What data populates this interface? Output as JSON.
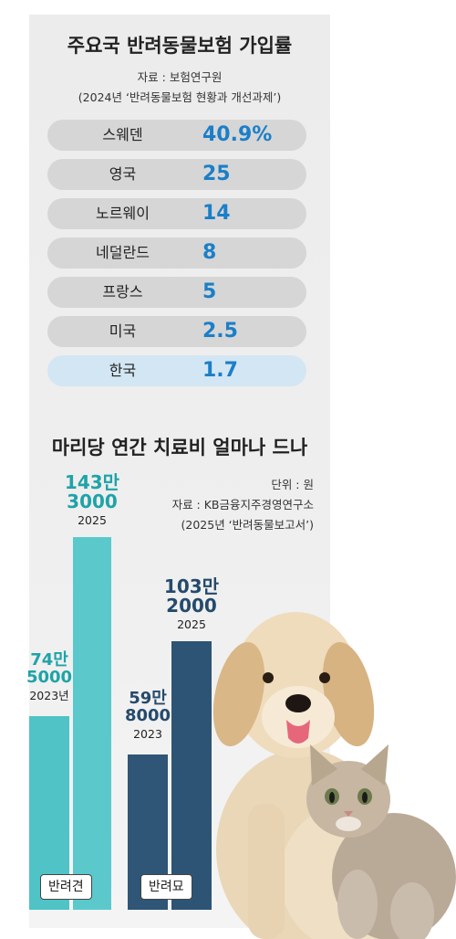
{
  "top_chart": {
    "title": "주요국 반려동물보험 가입률",
    "source": "자료 : 보험연구원",
    "source_doc": "(2024년 ‘반려동물보험 현황과 개선과제’)"
  },
  "bottom_chart": {
    "title": "마리당 연간 치료비 얼마나 드나",
    "unit": "단위 : 원",
    "source": "자료 :  KB금융지주경영연구소",
    "source_doc": "(2025년 ‘반려동물보고서’)",
    "dog": {
      "category": "반려견",
      "v2023_line1": "74만",
      "v2023_line2": "5000",
      "y2023": "2023년",
      "v2025_line1": "143만",
      "v2025_line2": "3000",
      "y2025": "2025"
    },
    "cat": {
      "category": "반려묘",
      "v2023_line1": "59만",
      "v2023_line2": "8000",
      "y2023": "2023",
      "v2025_line1": "103만",
      "v2025_line2": "2000",
      "y2025": "2025"
    }
  },
  "colors": {
    "dog_bar": "#4fc3c6",
    "cat_bar": "#2f5577",
    "value_blue": "#1b7fc8",
    "highlight_row": "#d3e6f4"
  },
  "chart_data": [
    {
      "type": "table",
      "title": "주요국 반려동물보험 가입률",
      "rows": [
        {
          "country": "스웨덴",
          "value": 40.9,
          "label": "40.9%"
        },
        {
          "country": "영국",
          "value": 25,
          "label": "25"
        },
        {
          "country": "노르웨이",
          "value": 14,
          "label": "14"
        },
        {
          "country": "네덜란드",
          "value": 8,
          "label": "8"
        },
        {
          "country": "프랑스",
          "value": 5,
          "label": "5"
        },
        {
          "country": "미국",
          "value": 2.5,
          "label": "2.5"
        },
        {
          "country": "한국",
          "value": 1.7,
          "label": "1.7",
          "highlight": true
        }
      ]
    },
    {
      "type": "bar",
      "title": "마리당 연간 치료비 얼마나 드나",
      "categories": [
        "반려견",
        "반려묘"
      ],
      "series": [
        {
          "values": [
            745000,
            598000
          ]
        },
        {
          "values": [
            1433000,
            1032000
          ]
        }
      ],
      "ylim": [
        0,
        1433000
      ]
    }
  ]
}
